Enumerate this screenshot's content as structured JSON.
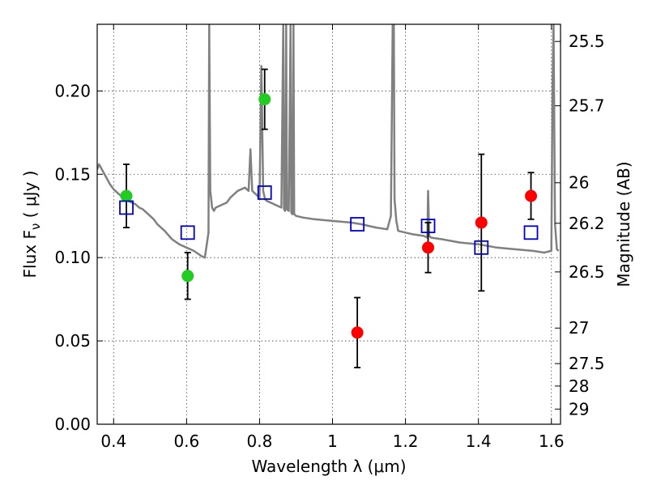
{
  "chart_data": {
    "type": "scatter",
    "xlabel": "Wavelength  λ (μm)",
    "ylabel": "Flux  F_ν  ( μJy )",
    "ylabel_right": "Magnitude (AB)",
    "xlim": [
      0.355,
      1.625
    ],
    "ylim": [
      0.0,
      0.24
    ],
    "grid": true,
    "x_ticks": [
      0.4,
      0.6,
      0.8,
      1.0,
      1.2,
      1.4,
      1.6
    ],
    "x_tick_labels": [
      "0.4",
      "0.6",
      "0.8",
      "1",
      "1.2",
      "1.4",
      "1.6"
    ],
    "y_ticks": [
      0.0,
      0.05,
      0.1,
      0.15,
      0.2
    ],
    "y_tick_labels": [
      "0.00",
      "0.05",
      "0.10",
      "0.15",
      "0.20"
    ],
    "right_ticks": [
      {
        "label": "25.5",
        "flux": 0.2297
      },
      {
        "label": "25.7",
        "flux": 0.1911
      },
      {
        "label": "26",
        "flux": 0.1449
      },
      {
        "label": "26.2",
        "flux": 0.1206
      },
      {
        "label": "26.5",
        "flux": 0.0914
      },
      {
        "label": "27",
        "flux": 0.0577
      },
      {
        "label": "27.5",
        "flux": 0.0364
      },
      {
        "label": "28",
        "flux": 0.0229
      },
      {
        "label": "29",
        "flux": 0.0091
      }
    ],
    "series": [
      {
        "marker": "line",
        "color": "#808080",
        "x": [
          0.355,
          0.36,
          0.37,
          0.38,
          0.39,
          0.4,
          0.41,
          0.42,
          0.43,
          0.44,
          0.45,
          0.46,
          0.47,
          0.48,
          0.49,
          0.5,
          0.51,
          0.52,
          0.54,
          0.56,
          0.58,
          0.6,
          0.62,
          0.64,
          0.65,
          0.66,
          0.662,
          0.665,
          0.67,
          0.675,
          0.68,
          0.69,
          0.7,
          0.71,
          0.72,
          0.73,
          0.74,
          0.75,
          0.76,
          0.77,
          0.775,
          0.78,
          0.79,
          0.8,
          0.805,
          0.81,
          0.815,
          0.82,
          0.83,
          0.84,
          0.85,
          0.86,
          0.865,
          0.867,
          0.87,
          0.873,
          0.875,
          0.88,
          0.885,
          0.887,
          0.89,
          0.893,
          0.895,
          0.9,
          0.92,
          0.95,
          1.0,
          1.05,
          1.08,
          1.1,
          1.12,
          1.15,
          1.16,
          1.165,
          1.168,
          1.17,
          1.175,
          1.18,
          1.2,
          1.22,
          1.25,
          1.26,
          1.262,
          1.265,
          1.27,
          1.3,
          1.35,
          1.4,
          1.45,
          1.5,
          1.55,
          1.58,
          1.6,
          1.603,
          1.606,
          1.61,
          1.615,
          1.62
        ],
        "y": [
          0.153,
          0.156,
          0.152,
          0.148,
          0.144,
          0.141,
          0.139,
          0.137,
          0.135,
          0.134,
          0.133,
          0.132,
          0.13,
          0.129,
          0.127,
          0.125,
          0.123,
          0.12,
          0.116,
          0.111,
          0.108,
          0.106,
          0.104,
          0.101,
          0.1,
          0.115,
          0.24,
          0.14,
          0.13,
          0.128,
          0.13,
          0.131,
          0.132,
          0.133,
          0.136,
          0.138,
          0.14,
          0.141,
          0.142,
          0.14,
          0.165,
          0.14,
          0.138,
          0.136,
          0.215,
          0.14,
          0.135,
          0.134,
          0.133,
          0.132,
          0.131,
          0.13,
          0.24,
          0.129,
          0.128,
          0.24,
          0.129,
          0.128,
          0.24,
          0.127,
          0.126,
          0.24,
          0.126,
          0.125,
          0.124,
          0.123,
          0.122,
          0.121,
          0.12,
          0.119,
          0.118,
          0.117,
          0.125,
          0.24,
          0.24,
          0.135,
          0.122,
          0.116,
          0.115,
          0.114,
          0.113,
          0.112,
          0.14,
          0.113,
          0.112,
          0.111,
          0.109,
          0.108,
          0.106,
          0.105,
          0.104,
          0.103,
          0.104,
          0.2,
          0.24,
          0.12,
          0.105,
          0.104
        ]
      },
      {
        "marker": "circle",
        "color": "#22cc22",
        "x": [
          0.435,
          0.603,
          0.814
        ],
        "y": [
          0.137,
          0.089,
          0.195
        ],
        "yerr": [
          0.019,
          0.014,
          0.018
        ]
      },
      {
        "marker": "circle",
        "color": "#ff0000",
        "x": [
          1.068,
          1.262,
          1.408,
          1.544
        ],
        "y": [
          0.055,
          0.106,
          0.121,
          0.137
        ],
        "yerr": [
          0.021,
          0.015,
          0.041,
          0.014
        ]
      },
      {
        "marker": "square",
        "color": "#0000cc",
        "x": [
          0.435,
          0.603,
          0.814,
          1.068,
          1.262,
          1.408,
          1.544
        ],
        "y": [
          0.13,
          0.115,
          0.139,
          0.12,
          0.119,
          0.106,
          0.115
        ]
      }
    ]
  }
}
